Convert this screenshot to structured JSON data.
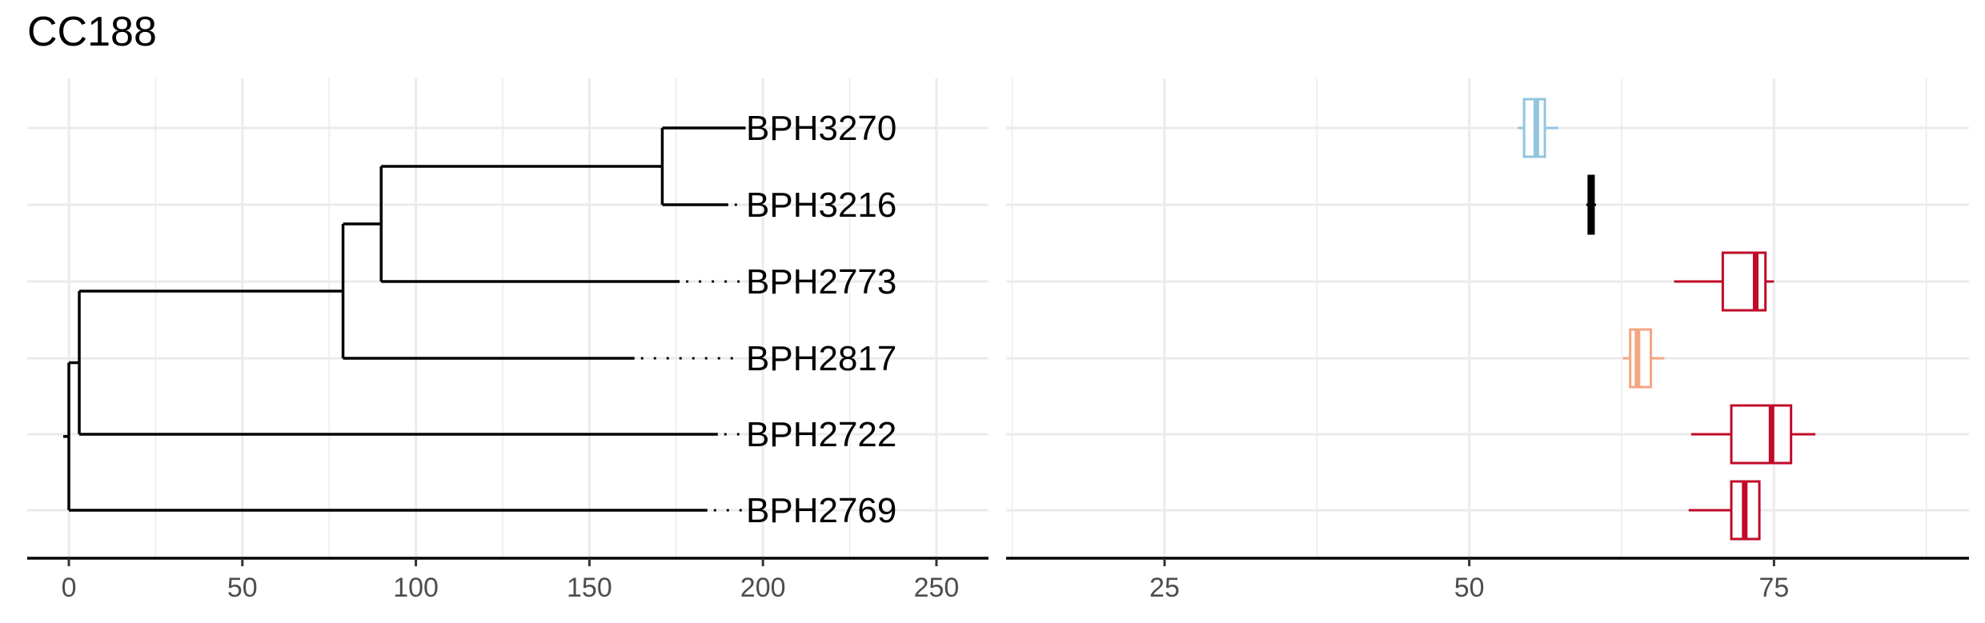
{
  "title": "CC188",
  "chart_data": [
    {
      "type": "dendrogram",
      "title": "CC188",
      "xlabel": "",
      "ylabel": "",
      "xlim": [
        -12,
        265
      ],
      "xticks": [
        0,
        50,
        100,
        150,
        200,
        250
      ],
      "grid": true,
      "tips": [
        {
          "label": "BPH3270",
          "tip_x": 195,
          "parent_x": 171
        },
        {
          "label": "BPH3216",
          "tip_x": 190,
          "parent_x": 171
        },
        {
          "label": "BPH2773",
          "tip_x": 176,
          "parent_x": 90
        },
        {
          "label": "BPH2817",
          "tip_x": 163,
          "parent_x": 79
        },
        {
          "label": "BPH2722",
          "tip_x": 187,
          "parent_x": 3
        },
        {
          "label": "BPH2769",
          "tip_x": 184,
          "parent_x": 0
        }
      ],
      "internal_nodes": [
        {
          "x": 171,
          "parent_x": 90,
          "children": [
            0,
            1
          ]
        },
        {
          "x": 90,
          "parent_x": 79,
          "children": [
            "n171",
            2
          ]
        },
        {
          "x": 79,
          "parent_x": 3,
          "children": [
            "n90",
            3
          ]
        },
        {
          "x": 3,
          "parent_x": 0,
          "children": [
            "n79",
            4
          ]
        },
        {
          "x": 0,
          "parent_x": null,
          "children": [
            "n3",
            5
          ]
        }
      ]
    },
    {
      "type": "boxplot",
      "xlabel": "",
      "ylabel": "",
      "xlim": [
        12,
        91
      ],
      "xticks": [
        25,
        50,
        75
      ],
      "grid": true,
      "orientation": "horizontal",
      "boxes": [
        {
          "label": "BPH3270",
          "min": 54.0,
          "q1": 54.5,
          "median": 55.5,
          "q3": 56.2,
          "max": 57.3,
          "color": "#92c5de"
        },
        {
          "label": "BPH3216",
          "min": 59.6,
          "q1": 59.8,
          "median": 60.0,
          "q3": 60.2,
          "max": 60.4,
          "color": "#000000"
        },
        {
          "label": "BPH2773",
          "min": 66.8,
          "q1": 70.8,
          "median": 73.5,
          "q3": 74.3,
          "max": 75.0,
          "color": "#c00a28"
        },
        {
          "label": "BPH2817",
          "min": 62.6,
          "q1": 63.2,
          "median": 63.8,
          "q3": 64.9,
          "max": 66.0,
          "color": "#f4a582"
        },
        {
          "label": "BPH2722",
          "min": 68.2,
          "q1": 71.5,
          "median": 74.8,
          "q3": 76.4,
          "max": 78.4,
          "color": "#c00a28"
        },
        {
          "label": "BPH2769",
          "min": 68.0,
          "q1": 71.5,
          "median": 72.6,
          "q3": 73.8,
          "max": 73.8,
          "color": "#c00a28"
        }
      ]
    }
  ]
}
